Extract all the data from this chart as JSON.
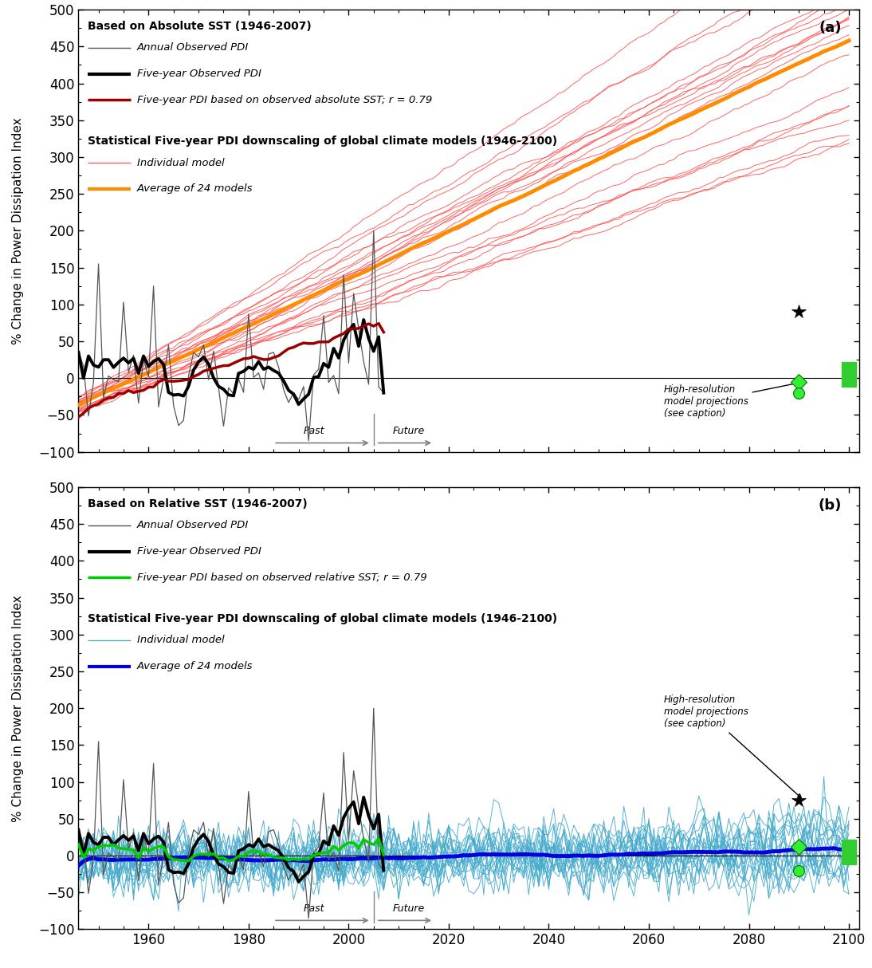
{
  "title_a": "Based on Absolute SST (1946-2007)",
  "title_b": "Based on Relative SST (1946-2007)",
  "stat_header": "Statistical Five-year PDI downscaling of global climate models (1946-2100)",
  "ylabel": "% Change in Power Dissipation Index",
  "xlim": [
    1946,
    2102
  ],
  "ylim": [
    -100,
    500
  ],
  "yticks": [
    -100,
    -50,
    0,
    50,
    100,
    150,
    200,
    250,
    300,
    350,
    400,
    450,
    500
  ],
  "xticks": [
    1960,
    1980,
    2000,
    2020,
    2040,
    2060,
    2080,
    2100
  ],
  "color_thin_black": "#555555",
  "color_thick_black": "#000000",
  "color_dark_red": "#990000",
  "color_thin_red": "#ff5555",
  "color_orange": "#ff8c00",
  "color_green": "#00cc00",
  "color_thin_cyan": "#44aacc",
  "color_blue": "#0000dd",
  "marker_x": 2090,
  "marker_star_y_a": 90,
  "marker_diamond_y_a": -5,
  "marker_circle_y_a": -20,
  "marker_star_y_b": 75,
  "marker_diamond_y_b": 12,
  "marker_circle_y_b": -20,
  "green_bar_ymin": -12,
  "green_bar_ymax": 22,
  "seed": 42,
  "n_models": 20,
  "obs_start": 1946,
  "obs_end": 2007,
  "proj_end": 2100
}
